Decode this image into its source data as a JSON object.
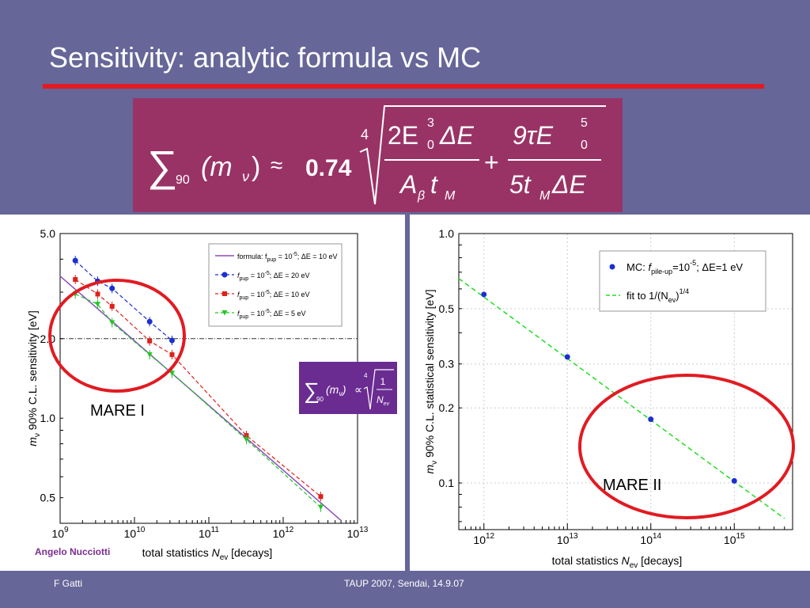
{
  "slide": {
    "title": "Sensitivity: analytic formula vs MC",
    "footer_left": "F Gatti",
    "footer_center": "TAUP 2007, Sendai, 14.9.07",
    "credit": "Angelo Nucciotti"
  },
  "formula": {
    "sum_symbol": "∑",
    "sum_sub": "90",
    "arg_open": "(m",
    "arg_sub": "ν",
    "arg_close": ")",
    "approx": "≈",
    "coefficient": "0.74",
    "root_index": "4",
    "term1_num": "2E",
    "term1_num_sup": "3",
    "term1_num_sub": "0",
    "term1_num_rest": "ΔE",
    "term1_den": "A",
    "term1_den_sub": "β",
    "term1_den_rest": "t",
    "term1_den_rest_sub": "M",
    "plus": "+",
    "term2_num": "9τE",
    "term2_num_sup": "5",
    "term2_num_sub": "0",
    "term2_den": "5t",
    "term2_den_sub": "M",
    "term2_den_rest": "ΔE"
  },
  "inset_formula": {
    "sum_symbol": "∑",
    "sum_sub": "90",
    "arg": "(m",
    "arg_sub": "ν",
    "arg_close": ")",
    "propto": "∝",
    "root_index": "4",
    "numerator": "1",
    "denominator": "N",
    "denominator_sub": "ev",
    "color": "#6a2c91"
  },
  "chart_data": [
    {
      "type": "scatter",
      "scale": "log-log",
      "xlabel": "total statistics N_ev [decays]",
      "xlabel_main": "total statistics ",
      "xlabel_var": "N",
      "xlabel_sub": "ev",
      "xlabel_unit": " [decays]",
      "ylabel": "m_ν 90% C.L. sensitivity [eV]",
      "ylabel_var": "m",
      "ylabel_sub": "ν",
      "ylabel_rest": " 90% C.L. sensitivity [eV]",
      "xlim": [
        1000000000.0,
        10000000000000.0
      ],
      "ylim": [
        0.4,
        5.0
      ],
      "x_ticks": [
        {
          "v": 1000000000.0,
          "base": "10",
          "exp": "9"
        },
        {
          "v": 10000000000.0,
          "base": "10",
          "exp": "10"
        },
        {
          "v": 100000000000.0,
          "base": "10",
          "exp": "11"
        },
        {
          "v": 1000000000000.0,
          "base": "10",
          "exp": "12"
        },
        {
          "v": 10000000000000.0,
          "base": "10",
          "exp": "13"
        }
      ],
      "y_ticks": [
        {
          "v": 0.5,
          "label": "0.5"
        },
        {
          "v": 1.0,
          "label": "1.0"
        },
        {
          "v": 2.0,
          "label": "2.0"
        },
        {
          "v": 5.0,
          "label": "5.0"
        }
      ],
      "reference_line_y": 2.0,
      "annotation": "MARE I",
      "legend": [
        {
          "label": "formula: f",
          "sub": "pup",
          "rest": " = 10",
          "sup": "-5",
          "tail": "; ΔE = 10 eV",
          "color": "#8a4fc1",
          "marker": "line"
        },
        {
          "label": "f",
          "sub": "pup",
          "rest": " = 10",
          "sup": "-5",
          "tail": "; ΔE = 20 eV",
          "color": "#1c2fd1",
          "marker": "circle"
        },
        {
          "label": "f",
          "sub": "pup",
          "rest": " = 10",
          "sup": "-5",
          "tail": "; ΔE = 10 eV",
          "color": "#e0201c",
          "marker": "square"
        },
        {
          "label": "f",
          "sub": "pup",
          "rest": " = 10",
          "sup": "-5",
          "tail": "; ΔE = 5 eV",
          "color": "#22c722",
          "marker": "triangle"
        }
      ],
      "formula_line": {
        "x": [
          1000000000.0,
          6000000000000.0
        ],
        "y": [
          3.45,
          0.41
        ],
        "color": "#8a4fc1"
      },
      "series": [
        {
          "name": "f_pup = 10^-5; ΔE = 20 eV",
          "color": "#1c2fd1",
          "marker": "circle",
          "x": [
            1600000000.0,
            3200000000.0,
            5000000000.0,
            16000000000.0,
            32000000000.0
          ],
          "y": [
            3.95,
            3.3,
            3.1,
            2.32,
            1.97
          ]
        },
        {
          "name": "f_pup = 10^-5; ΔE = 10 eV",
          "color": "#e0201c",
          "marker": "square",
          "x": [
            1600000000.0,
            3200000000.0,
            5000000000.0,
            16000000000.0,
            32000000000.0,
            320000000000.0,
            3200000000000.0
          ],
          "y": [
            3.35,
            2.95,
            2.65,
            1.96,
            1.74,
            0.86,
            0.505
          ]
        },
        {
          "name": "f_pup = 10^-5; ΔE = 5 eV",
          "color": "#22c722",
          "marker": "triangle",
          "x": [
            1600000000.0,
            3200000000.0,
            5000000000.0,
            16000000000.0,
            32000000000.0,
            320000000000.0,
            3200000000000.0
          ],
          "y": [
            2.95,
            2.7,
            2.3,
            1.74,
            1.48,
            0.83,
            0.46
          ]
        }
      ]
    },
    {
      "type": "scatter",
      "scale": "log-log",
      "xlabel": "total statistics N_ev [decays]",
      "xlabel_main": "total statistics ",
      "xlabel_var": "N",
      "xlabel_sub": "ev",
      "xlabel_unit": " [decays]",
      "ylabel": "m_ν 90% C.L. statistical sensitivity [eV]",
      "ylabel_var": "m",
      "ylabel_sub": "ν",
      "ylabel_rest": " 90% C.L. statistical sensitivity [eV]",
      "xlim": [
        500000000000.0,
        5000000000000000.0
      ],
      "ylim": [
        0.065,
        1.0
      ],
      "x_ticks": [
        {
          "v": 1000000000000.0,
          "base": "10",
          "exp": "12"
        },
        {
          "v": 10000000000000.0,
          "base": "10",
          "exp": "13"
        },
        {
          "v": 100000000000000.0,
          "base": "10",
          "exp": "14"
        },
        {
          "v": 1000000000000000.0,
          "base": "10",
          "exp": "15"
        }
      ],
      "y_ticks": [
        {
          "v": 0.1,
          "label": "0.1"
        },
        {
          "v": 0.2,
          "label": "0.2"
        },
        {
          "v": 0.3,
          "label": "0.3"
        },
        {
          "v": 0.5,
          "label": "0.5"
        },
        {
          "v": 1.0,
          "label": "1.0"
        }
      ],
      "annotation": "MARE  II",
      "legend": [
        {
          "label": "MC: ",
          "var": "f",
          "sub": "pile-up",
          "rest": "=10",
          "sup": "-5",
          "tail": "; ΔE=1 eV",
          "color": "#1c2fd1",
          "marker": "circle"
        },
        {
          "label": "fit to 1/(N",
          "sub": "ev",
          "rest": ")",
          "sup": "1/4",
          "tail": "",
          "color": "#22dd22",
          "marker": "dashline"
        }
      ],
      "fit_line": {
        "x": [
          500000000000.0,
          4000000000000000.0
        ],
        "y": [
          0.66,
          0.072
        ],
        "color": "#22dd22"
      },
      "series": [
        {
          "name": "MC: f_pile-up=10^-5; ΔE=1 eV",
          "color": "#1c2fd1",
          "marker": "circle",
          "x": [
            1000000000000.0,
            10000000000000.0,
            100000000000000.0,
            1000000000000000.0
          ],
          "y": [
            0.57,
            0.32,
            0.18,
            0.102
          ]
        }
      ]
    }
  ]
}
